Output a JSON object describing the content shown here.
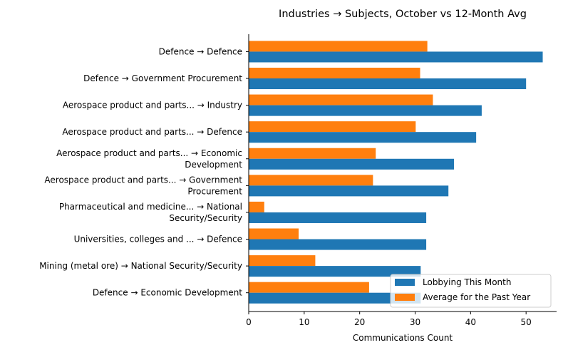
{
  "chart_data": {
    "type": "bar",
    "orientation": "horizontal",
    "title": "Industries → Subjects, October vs 12-Month Avg",
    "xlabel": "Communications Count",
    "ylabel": "",
    "xlim": [
      0,
      55.5
    ],
    "xticks": [
      0,
      10,
      20,
      30,
      40,
      50
    ],
    "grid": false,
    "legend_position": "lower-right",
    "categories": [
      [
        "Defence → Defence"
      ],
      [
        "Defence → Government Procurement"
      ],
      [
        "Aerospace product and parts... → Industry"
      ],
      [
        "Aerospace product and parts... → Defence"
      ],
      [
        "Aerospace product and parts... → Economic",
        "Development"
      ],
      [
        "Aerospace product and parts... → Government",
        "Procurement"
      ],
      [
        "Pharmaceutical and medicine... → National",
        "Security/Security"
      ],
      [
        "Universities, colleges and ... → Defence"
      ],
      [
        "Mining (metal ore) → National Security/Security"
      ],
      [
        "Defence → Economic Development"
      ]
    ],
    "series": [
      {
        "name": "Lobbying This Month",
        "color": "#1f77b4",
        "values": [
          53,
          50,
          42,
          41,
          37,
          36,
          32,
          32,
          31,
          31
        ]
      },
      {
        "name": "Average for the Past Year",
        "color": "#ff7f0e",
        "values": [
          32.2,
          30.9,
          33.2,
          30.1,
          22.9,
          22.4,
          2.8,
          9.0,
          12.0,
          21.7
        ]
      }
    ]
  }
}
